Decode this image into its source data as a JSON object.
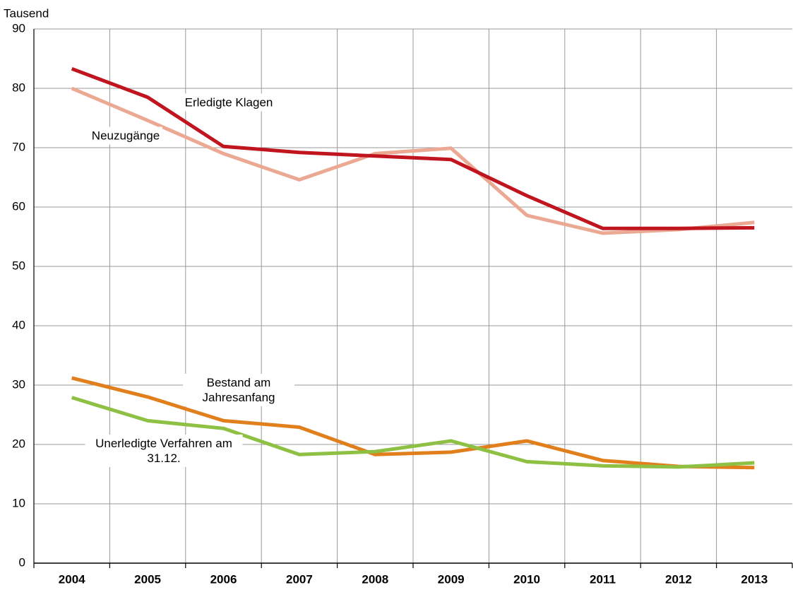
{
  "chart_data": {
    "type": "line",
    "y_label": "Tausend",
    "categories": [
      "2004",
      "2005",
      "2006",
      "2007",
      "2008",
      "2009",
      "2010",
      "2011",
      "2012",
      "2013"
    ],
    "series": [
      {
        "name": "Neuzugänge",
        "color": "#eba892",
        "values": [
          80.0,
          74.6,
          69.0,
          64.6,
          69.0,
          69.9,
          58.6,
          55.6,
          56.2,
          57.4
        ]
      },
      {
        "name": "Erledigte Klagen",
        "color": "#c0141f",
        "values": [
          83.3,
          78.5,
          70.2,
          69.2,
          68.6,
          68.0,
          61.9,
          56.4,
          56.4,
          56.5
        ]
      },
      {
        "name": "Bestand am Jahresanfang",
        "color": "#e07f1c",
        "values": [
          31.2,
          28.0,
          24.0,
          22.9,
          18.3,
          18.7,
          20.6,
          17.3,
          16.3,
          16.1
        ]
      },
      {
        "name": "Unerledigte Verfahren am 31.12.",
        "color": "#8dc043",
        "values": [
          27.9,
          24.0,
          22.7,
          18.3,
          18.8,
          20.6,
          17.1,
          16.4,
          16.2,
          16.9
        ]
      }
    ],
    "ylim": [
      0,
      90
    ],
    "yticks": [
      0,
      10,
      20,
      30,
      40,
      50,
      60,
      70,
      80,
      90
    ],
    "grid": true
  }
}
